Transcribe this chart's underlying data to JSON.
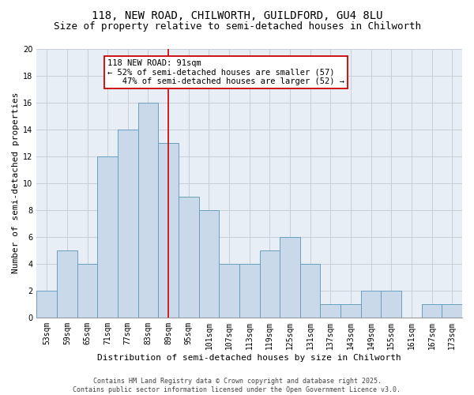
{
  "title1": "118, NEW ROAD, CHILWORTH, GUILDFORD, GU4 8LU",
  "title2": "Size of property relative to semi-detached houses in Chilworth",
  "xlabel": "Distribution of semi-detached houses by size in Chilworth",
  "ylabel": "Number of semi-detached properties",
  "categories": [
    "53sqm",
    "59sqm",
    "65sqm",
    "71sqm",
    "77sqm",
    "83sqm",
    "89sqm",
    "95sqm",
    "101sqm",
    "107sqm",
    "113sqm",
    "119sqm",
    "125sqm",
    "131sqm",
    "137sqm",
    "143sqm",
    "149sqm",
    "155sqm",
    "161sqm",
    "167sqm",
    "173sqm"
  ],
  "values": [
    2,
    5,
    4,
    12,
    14,
    16,
    13,
    9,
    8,
    4,
    4,
    5,
    6,
    4,
    1,
    1,
    2,
    2,
    0,
    1,
    1
  ],
  "bar_color": "#c9d9ea",
  "bar_edge_color": "#6a9fc0",
  "highlight_index": 6,
  "highlight_line_color": "#cc0000",
  "annotation_line1": "118 NEW ROAD: 91sqm",
  "annotation_line2": "← 52% of semi-detached houses are smaller (57)",
  "annotation_line3": "   47% of semi-detached houses are larger (52) →",
  "annotation_box_color": "#ffffff",
  "annotation_box_edge": "#cc0000",
  "ylim": [
    0,
    20
  ],
  "yticks": [
    0,
    2,
    4,
    6,
    8,
    10,
    12,
    14,
    16,
    18,
    20
  ],
  "grid_color": "#c8cfd8",
  "bg_color": "#e8eef5",
  "footer1": "Contains HM Land Registry data © Crown copyright and database right 2025.",
  "footer2": "Contains public sector information licensed under the Open Government Licence v3.0.",
  "title_fontsize": 10,
  "subtitle_fontsize": 9,
  "axis_label_fontsize": 8,
  "tick_fontsize": 7,
  "annotation_fontsize": 7.5,
  "footer_fontsize": 6
}
